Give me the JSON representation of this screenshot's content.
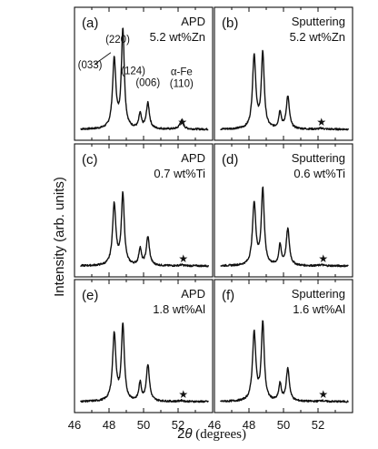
{
  "chart_data": {
    "type": "line",
    "x_axis": {
      "label_prefix": "2",
      "label_symbol": "θ",
      "label_suffix": " (degrees)",
      "range": [
        46,
        54
      ],
      "ticks": [
        46,
        48,
        50,
        52
      ]
    },
    "y_axis": {
      "label": "Intensity (arb. units)"
    },
    "peak_positions": [
      48.3,
      48.8,
      49.8,
      50.25,
      52.2
    ],
    "panels": [
      {
        "id": "a",
        "tag": "(a)",
        "method": "APD",
        "composition": "5.2 wt%Zn",
        "annotations": [
          {
            "text": "(220)",
            "x": 48.5,
            "y": 0.88
          },
          {
            "text": "(033)",
            "x": 46.9,
            "y": 0.62
          },
          {
            "text": "(124)",
            "x": 49.4,
            "y": 0.56
          },
          {
            "text": "(006)",
            "x": 50.25,
            "y": 0.44
          },
          {
            "text": "α-Fe",
            "x": 52.2,
            "y": 0.55
          },
          {
            "text": "(110)",
            "x": 52.2,
            "y": 0.43
          }
        ],
        "star_x": 52.25,
        "peaks": [
          {
            "x": 48.3,
            "height": 0.7,
            "width": 0.17
          },
          {
            "x": 48.8,
            "height": 1.0,
            "width": 0.15
          },
          {
            "x": 49.8,
            "height": 0.15,
            "width": 0.13
          },
          {
            "x": 50.25,
            "height": 0.26,
            "width": 0.16
          },
          {
            "x": 52.2,
            "height": 0.09,
            "width": 0.18
          }
        ]
      },
      {
        "id": "b",
        "tag": "(b)",
        "method": "Sputtering",
        "composition": "5.2 wt%Zn",
        "annotations": [],
        "star_x": 52.2,
        "peaks": [
          {
            "x": 48.3,
            "height": 0.74,
            "width": 0.17
          },
          {
            "x": 48.8,
            "height": 0.76,
            "width": 0.15
          },
          {
            "x": 49.8,
            "height": 0.17,
            "width": 0.13
          },
          {
            "x": 50.25,
            "height": 0.33,
            "width": 0.16
          },
          {
            "x": 52.2,
            "height": 0.01,
            "width": 0.2
          }
        ]
      },
      {
        "id": "c",
        "tag": "(c)",
        "method": "APD",
        "composition": "0.7 wt%Ti",
        "annotations": [],
        "star_x": 52.3,
        "peaks": [
          {
            "x": 48.3,
            "height": 0.62,
            "width": 0.17
          },
          {
            "x": 48.8,
            "height": 0.72,
            "width": 0.15
          },
          {
            "x": 49.8,
            "height": 0.17,
            "width": 0.13
          },
          {
            "x": 50.25,
            "height": 0.29,
            "width": 0.16
          },
          {
            "x": 52.2,
            "height": 0.01,
            "width": 0.2
          }
        ]
      },
      {
        "id": "d",
        "tag": "(d)",
        "method": "Sputtering",
        "composition": "0.6 wt%Ti",
        "annotations": [],
        "star_x": 52.3,
        "peaks": [
          {
            "x": 48.3,
            "height": 0.63,
            "width": 0.17
          },
          {
            "x": 48.8,
            "height": 0.77,
            "width": 0.15
          },
          {
            "x": 49.8,
            "height": 0.2,
            "width": 0.13
          },
          {
            "x": 50.25,
            "height": 0.37,
            "width": 0.16
          },
          {
            "x": 52.2,
            "height": 0.01,
            "width": 0.2
          }
        ]
      },
      {
        "id": "e",
        "tag": "(e)",
        "method": "APD",
        "composition": "1.8 wt%Al",
        "annotations": [],
        "star_x": 52.3,
        "peaks": [
          {
            "x": 48.3,
            "height": 0.68,
            "width": 0.17
          },
          {
            "x": 48.8,
            "height": 0.77,
            "width": 0.15
          },
          {
            "x": 49.8,
            "height": 0.18,
            "width": 0.13
          },
          {
            "x": 50.25,
            "height": 0.37,
            "width": 0.16
          },
          {
            "x": 52.2,
            "height": 0.01,
            "width": 0.2
          }
        ]
      },
      {
        "id": "f",
        "tag": "(f)",
        "method": "Sputtering",
        "composition": "1.6 wt%Al",
        "annotations": [],
        "star_x": 52.3,
        "peaks": [
          {
            "x": 48.3,
            "height": 0.69,
            "width": 0.17
          },
          {
            "x": 48.8,
            "height": 0.79,
            "width": 0.15
          },
          {
            "x": 49.8,
            "height": 0.17,
            "width": 0.13
          },
          {
            "x": 50.25,
            "height": 0.33,
            "width": 0.16
          },
          {
            "x": 52.2,
            "height": 0.01,
            "width": 0.2
          }
        ]
      }
    ]
  }
}
